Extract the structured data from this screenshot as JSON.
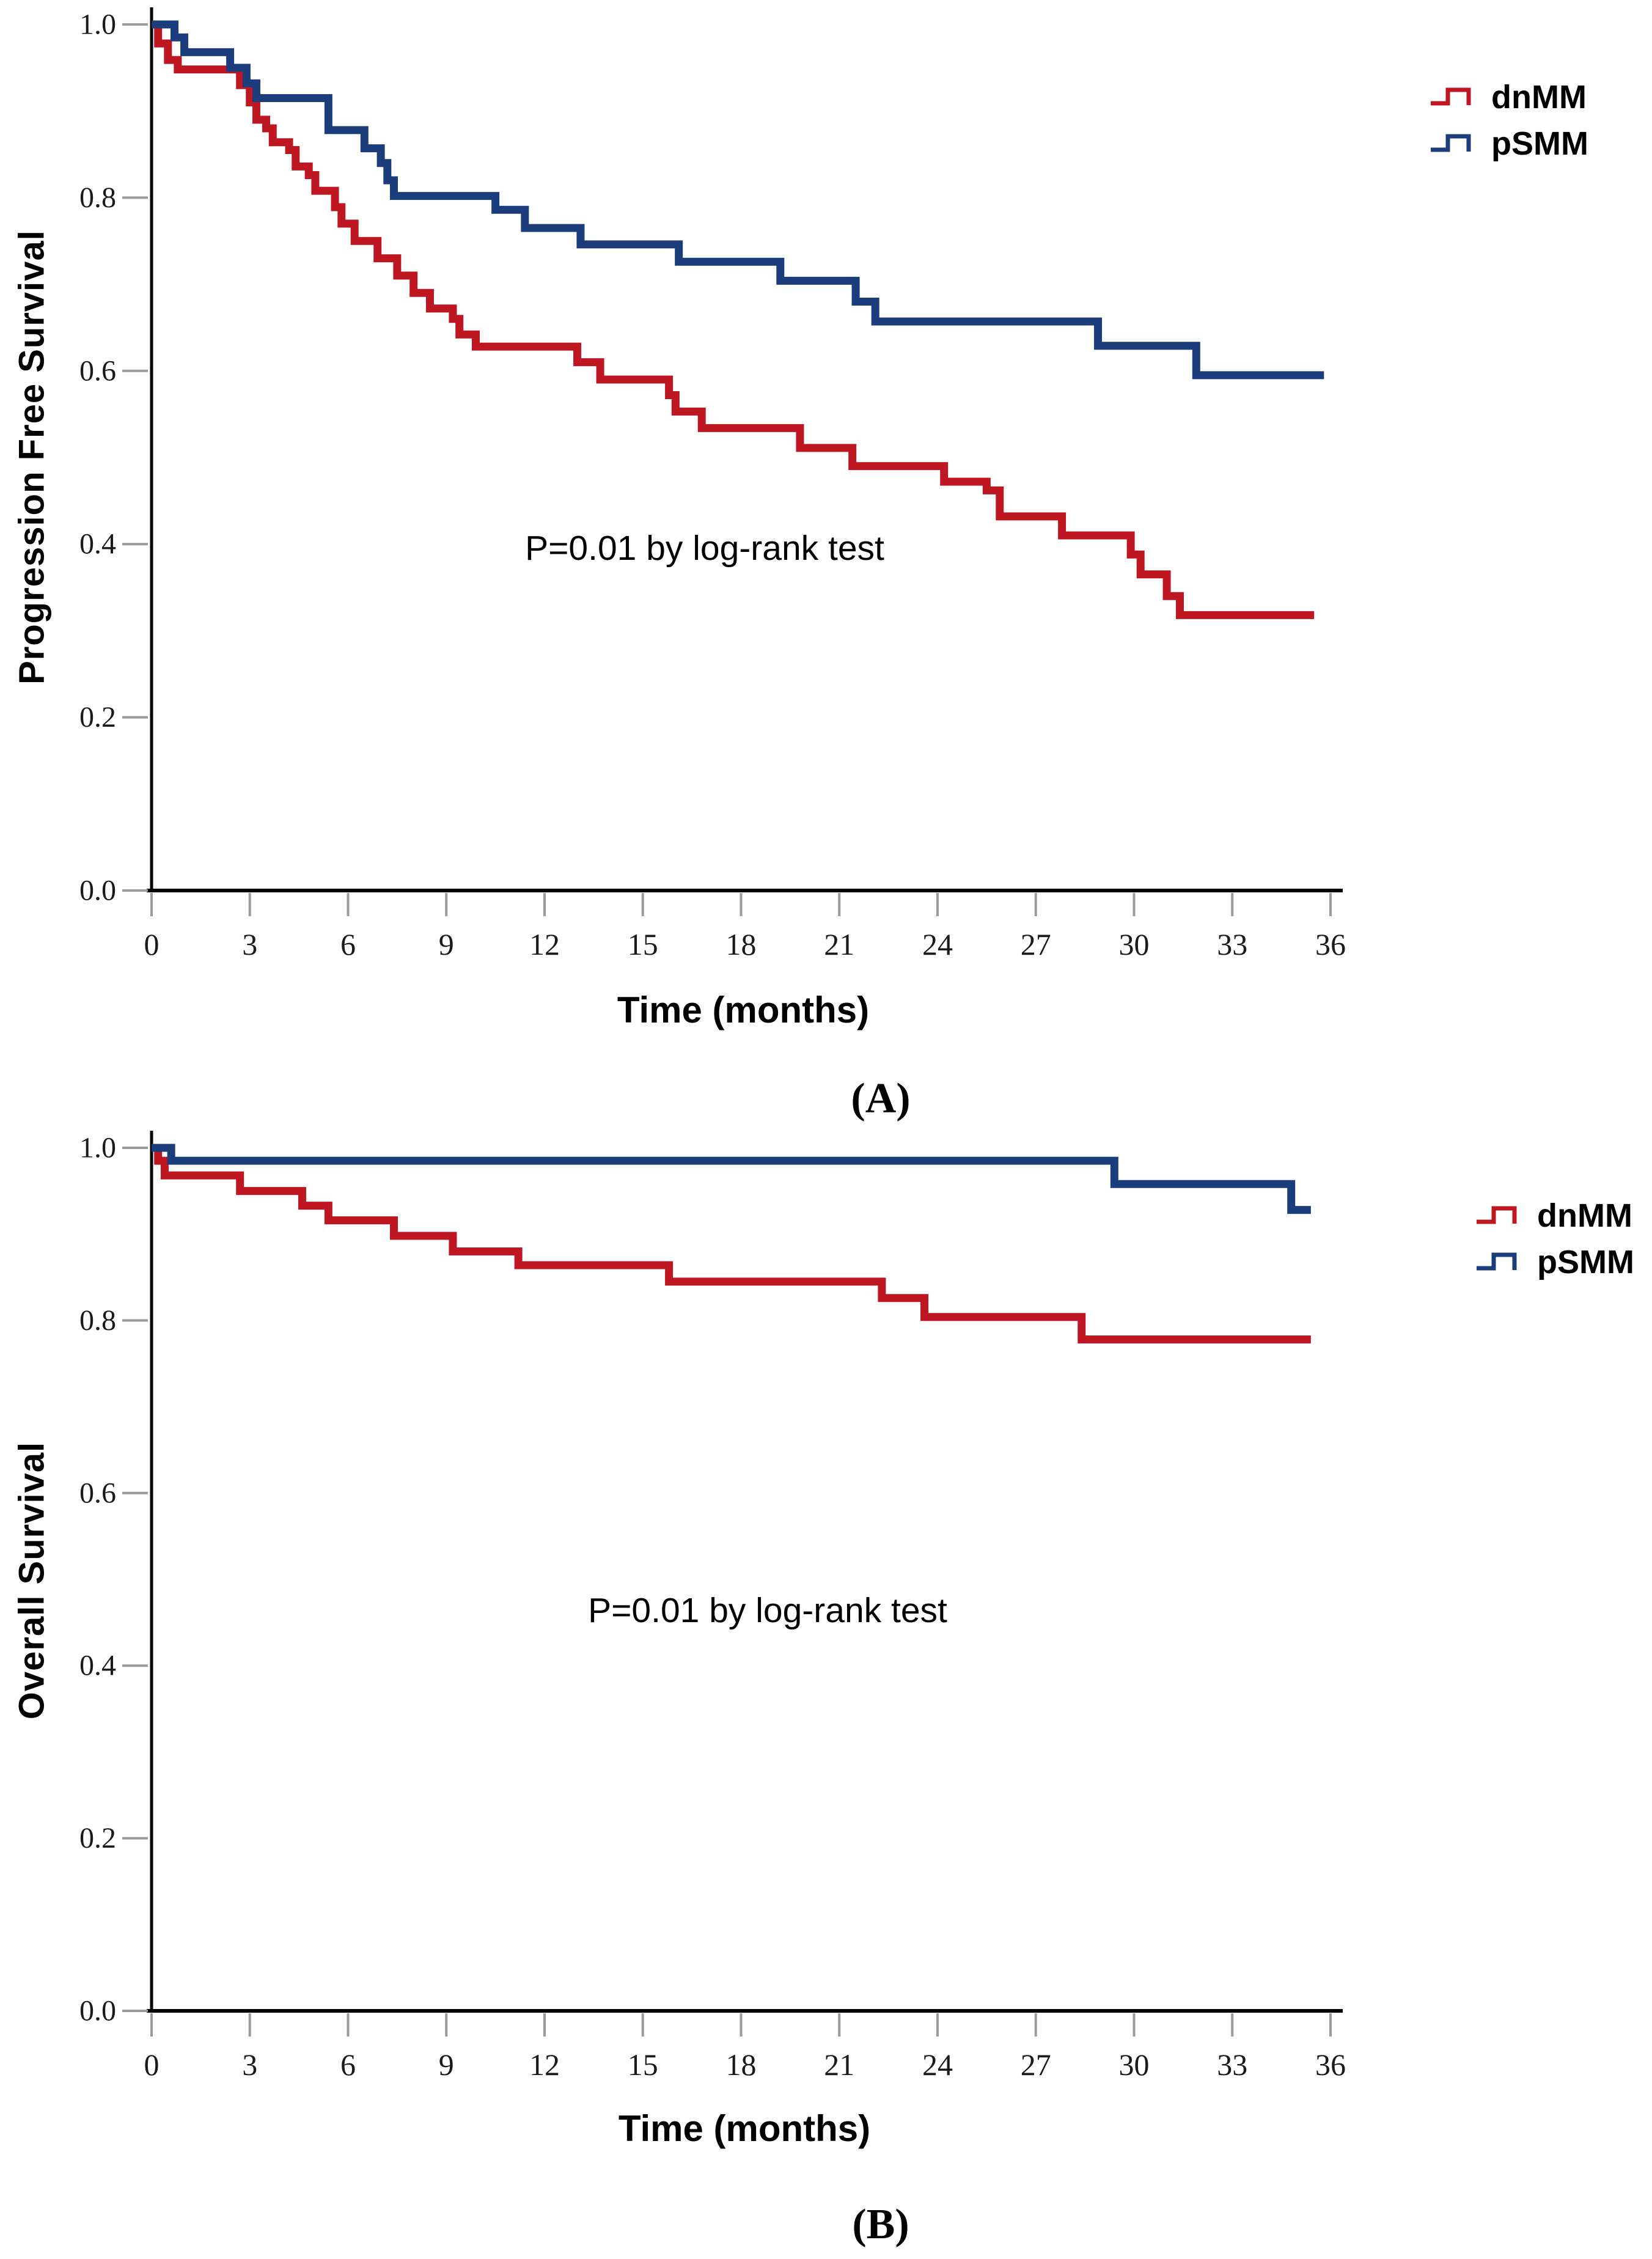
{
  "colors": {
    "dnMM": "#bf1722",
    "pSMM": "#1b3d7c",
    "axis": "#000000",
    "tick": "#9b9b9b",
    "tick_label": "#1a1a1a"
  },
  "figure": {
    "panels": [
      {
        "id": "pfs",
        "y_axis_title": "Progression Free Survival",
        "x_axis_title": "Time (months)",
        "caption": "(A)",
        "annotation": "P=0.01 by log-rank test",
        "legend": [
          {
            "label": "dnMM"
          },
          {
            "label": "pSMM"
          }
        ]
      },
      {
        "id": "os",
        "y_axis_title": "Overall Survival",
        "x_axis_title": "Time (months)",
        "caption": "(B)",
        "annotation": "P=0.01 by log-rank test",
        "legend": [
          {
            "label": "dnMM"
          },
          {
            "label": "pSMM"
          }
        ]
      }
    ]
  },
  "chart_data": [
    {
      "type": "line",
      "subtype": "kaplan-meier-step",
      "title": "Progression Free Survival by group",
      "xlabel": "Time (months)",
      "ylabel": "Progression Free Survival",
      "xlim": [
        0,
        36
      ],
      "ylim": [
        0.0,
        1.0
      ],
      "x_ticks": [
        0,
        3,
        6,
        9,
        12,
        15,
        18,
        21,
        24,
        27,
        30,
        33,
        36
      ],
      "y_ticks": [
        1.0,
        0.8,
        0.6,
        0.4,
        0.2,
        0.0
      ],
      "grid": false,
      "legend_position": "outside-top-right",
      "annotation": "P=0.01 by log-rank test",
      "series": [
        {
          "name": "dnMM",
          "color": "#bf1722",
          "end_x": 35.5,
          "points": [
            [
              0,
              1.0
            ],
            [
              0.2,
              0.978
            ],
            [
              0.5,
              0.959
            ],
            [
              0.8,
              0.948
            ],
            [
              2.7,
              0.93
            ],
            [
              3.0,
              0.91
            ],
            [
              3.2,
              0.89
            ],
            [
              3.5,
              0.88
            ],
            [
              3.7,
              0.864
            ],
            [
              4.2,
              0.855
            ],
            [
              4.4,
              0.836
            ],
            [
              4.8,
              0.826
            ],
            [
              5.0,
              0.808
            ],
            [
              5.6,
              0.789
            ],
            [
              5.8,
              0.77
            ],
            [
              6.2,
              0.75
            ],
            [
              6.9,
              0.73
            ],
            [
              7.5,
              0.71
            ],
            [
              8.0,
              0.69
            ],
            [
              8.5,
              0.672
            ],
            [
              9.2,
              0.66
            ],
            [
              9.4,
              0.642
            ],
            [
              9.9,
              0.628
            ],
            [
              13.0,
              0.61
            ],
            [
              13.7,
              0.59
            ],
            [
              15.8,
              0.572
            ],
            [
              16.0,
              0.553
            ],
            [
              16.8,
              0.534
            ],
            [
              19.8,
              0.511
            ],
            [
              21.4,
              0.49
            ],
            [
              24.2,
              0.472
            ],
            [
              25.5,
              0.462
            ],
            [
              25.9,
              0.432
            ],
            [
              27.8,
              0.41
            ],
            [
              29.9,
              0.388
            ],
            [
              30.2,
              0.365
            ],
            [
              31.0,
              0.34
            ],
            [
              31.4,
              0.318
            ]
          ]
        },
        {
          "name": "pSMM",
          "color": "#1b3d7c",
          "end_x": 35.8,
          "points": [
            [
              0,
              1.0
            ],
            [
              0.7,
              0.985
            ],
            [
              1.0,
              0.968
            ],
            [
              2.4,
              0.95
            ],
            [
              2.9,
              0.932
            ],
            [
              3.2,
              0.915
            ],
            [
              5.4,
              0.878
            ],
            [
              6.5,
              0.857
            ],
            [
              7.0,
              0.84
            ],
            [
              7.2,
              0.82
            ],
            [
              7.4,
              0.802
            ],
            [
              10.5,
              0.786
            ],
            [
              11.4,
              0.765
            ],
            [
              13.1,
              0.746
            ],
            [
              16.1,
              0.726
            ],
            [
              19.2,
              0.704
            ],
            [
              21.5,
              0.68
            ],
            [
              22.1,
              0.657
            ],
            [
              28.9,
              0.629
            ],
            [
              31.9,
              0.595
            ]
          ]
        }
      ]
    },
    {
      "type": "line",
      "subtype": "kaplan-meier-step",
      "title": "Overall Survival by group",
      "xlabel": "Time (months)",
      "ylabel": "Overall Survival",
      "xlim": [
        0,
        36
      ],
      "ylim": [
        0.0,
        1.0
      ],
      "x_ticks": [
        0,
        3,
        6,
        9,
        12,
        15,
        18,
        21,
        24,
        27,
        30,
        33,
        36
      ],
      "y_ticks": [
        1.0,
        0.8,
        0.6,
        0.4,
        0.2,
        0.0
      ],
      "grid": false,
      "legend_position": "outside-top-right",
      "annotation": "P=0.01 by log-rank test",
      "series": [
        {
          "name": "dnMM",
          "color": "#bf1722",
          "end_x": 35.4,
          "points": [
            [
              0,
              1.0
            ],
            [
              0.2,
              0.985
            ],
            [
              0.4,
              0.968
            ],
            [
              2.7,
              0.95
            ],
            [
              4.6,
              0.933
            ],
            [
              5.4,
              0.916
            ],
            [
              7.4,
              0.898
            ],
            [
              9.2,
              0.88
            ],
            [
              11.2,
              0.864
            ],
            [
              15.8,
              0.845
            ],
            [
              22.3,
              0.826
            ],
            [
              23.6,
              0.804
            ],
            [
              28.4,
              0.778
            ]
          ]
        },
        {
          "name": "pSMM",
          "color": "#1b3d7c",
          "end_x": 35.4,
          "points": [
            [
              0,
              1.0
            ],
            [
              0.6,
              0.985
            ],
            [
              29.4,
              0.958
            ],
            [
              34.8,
              0.928
            ]
          ]
        }
      ]
    }
  ]
}
